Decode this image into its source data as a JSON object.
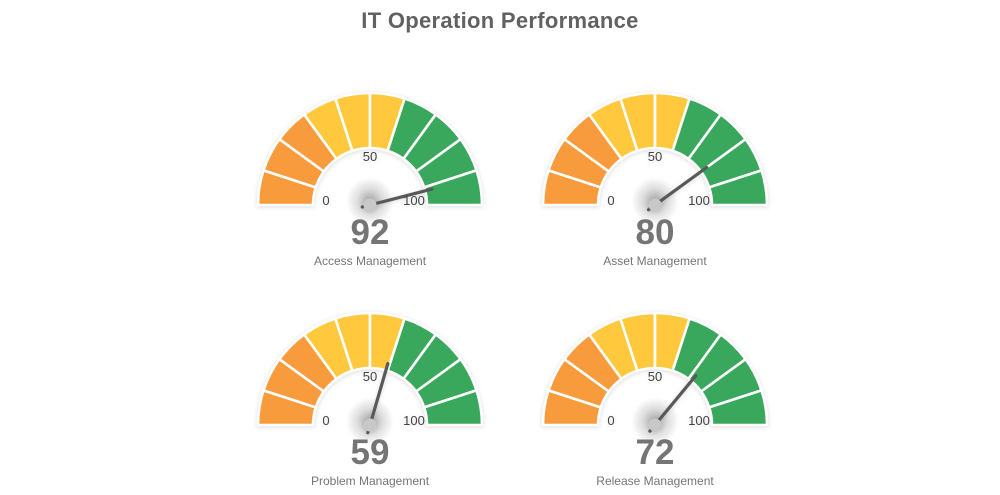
{
  "title": "IT Operation Performance",
  "colors": {
    "title_text": "#616161",
    "value_text": "#757575",
    "caption_text": "#757575",
    "tick_text": "#444444",
    "needle": "#58595B",
    "hub": "#C8C8C8",
    "background": "#FFFFFF"
  },
  "chart_data": {
    "type": "gauge",
    "title": "IT Operation Performance",
    "min": 0,
    "max": 100,
    "split_number": 10,
    "axis_labels": [
      "0",
      "50",
      "100"
    ],
    "bands": [
      {
        "from": 0,
        "to": 30,
        "color": "#F89B3C",
        "name": "orange"
      },
      {
        "from": 30,
        "to": 60,
        "color": "#FFC83D",
        "name": "yellow"
      },
      {
        "from": 60,
        "to": 100,
        "color": "#3AA85C",
        "name": "green"
      }
    ],
    "gauges": [
      {
        "label": "Access Management",
        "value": 92
      },
      {
        "label": "Asset Management",
        "value": 80
      },
      {
        "label": "Problem Management",
        "value": 59
      },
      {
        "label": "Release Management",
        "value": 72
      }
    ]
  }
}
